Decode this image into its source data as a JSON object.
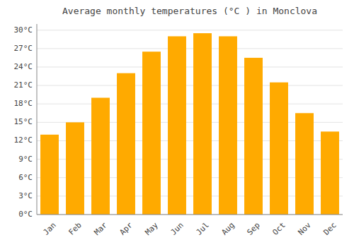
{
  "chart_data": {
    "type": "bar",
    "title": "Average monthly temperatures (°C ) in Monclova",
    "categories": [
      "Jan",
      "Feb",
      "Mar",
      "Apr",
      "May",
      "Jun",
      "Jul",
      "Aug",
      "Sep",
      "Oct",
      "Nov",
      "Dec"
    ],
    "values": [
      13.0,
      15.0,
      19.0,
      23.0,
      26.5,
      29.0,
      29.5,
      29.0,
      25.5,
      21.5,
      16.5,
      13.5
    ],
    "color": "#FFAA00",
    "ylim": [
      0,
      31
    ],
    "yticks": [
      {
        "value": 0,
        "label": "0°C"
      },
      {
        "value": 3,
        "label": "3°C"
      },
      {
        "value": 6,
        "label": "6°C"
      },
      {
        "value": 9,
        "label": "9°C"
      },
      {
        "value": 12,
        "label": "12°C"
      },
      {
        "value": 15,
        "label": "15°C"
      },
      {
        "value": 18,
        "label": "18°C"
      },
      {
        "value": 21,
        "label": "21°C"
      },
      {
        "value": 24,
        "label": "24°C"
      },
      {
        "value": 27,
        "label": "27°C"
      },
      {
        "value": 30,
        "label": "30°C"
      }
    ],
    "grid": true
  }
}
